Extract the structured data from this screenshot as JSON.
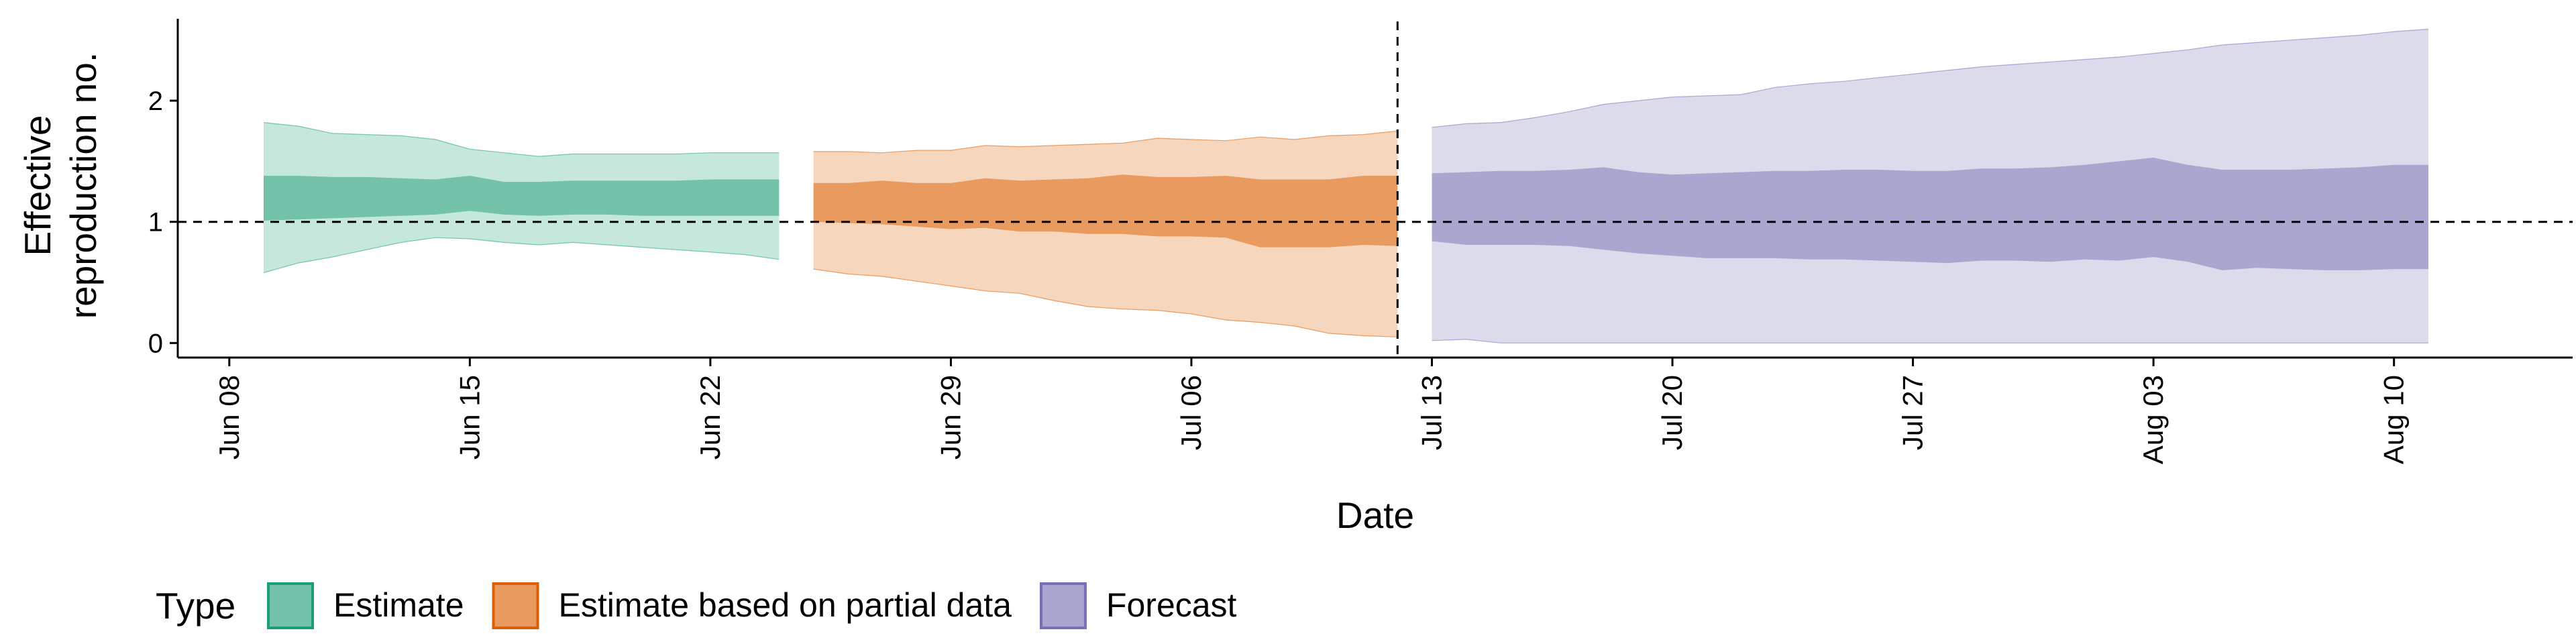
{
  "chart_data": {
    "type": "area",
    "title": "",
    "xlabel": "Date",
    "ylabel_lines": [
      "Effective",
      "reproduction no."
    ],
    "ylim": [
      -0.12,
      2.72
    ],
    "xlim": [
      -1.5,
      68.2
    ],
    "yticks": [
      0,
      1,
      2
    ],
    "xticks": [
      {
        "day": 0,
        "label": "Jun 08"
      },
      {
        "day": 7,
        "label": "Jun 15"
      },
      {
        "day": 14,
        "label": "Jun 22"
      },
      {
        "day": 21,
        "label": "Jun 29"
      },
      {
        "day": 28,
        "label": "Jul 06"
      },
      {
        "day": 35,
        "label": "Jul 13"
      },
      {
        "day": 42,
        "label": "Jul 20"
      },
      {
        "day": 49,
        "label": "Jul 27"
      },
      {
        "day": 56,
        "label": "Aug 03"
      },
      {
        "day": 63,
        "label": "Aug 10"
      }
    ],
    "x_axis_note": "x values are days since Jun 08",
    "reference_lines": {
      "hline_y": 1,
      "vline_day": 34.0
    },
    "legend": {
      "title": "Type",
      "position": "bottom",
      "entries": [
        "Estimate",
        "Estimate based on partial data",
        "Forecast"
      ]
    },
    "series": [
      {
        "name": "Estimate",
        "color_outer": "#c6e8dc",
        "color_inner": "#74c2a9",
        "stroke": "#1b9e77",
        "x": [
          1,
          2,
          3,
          4,
          5,
          6,
          7,
          8,
          9,
          10,
          11,
          12,
          13,
          14,
          15,
          16
        ],
        "lower90": [
          0.58,
          0.66,
          0.71,
          0.77,
          0.83,
          0.87,
          0.86,
          0.83,
          0.81,
          0.83,
          0.81,
          0.79,
          0.77,
          0.75,
          0.73,
          0.69
        ],
        "upper90": [
          1.82,
          1.79,
          1.73,
          1.72,
          1.71,
          1.68,
          1.6,
          1.57,
          1.54,
          1.56,
          1.56,
          1.56,
          1.56,
          1.57,
          1.57,
          1.57
        ],
        "lower50": [
          1.01,
          1.02,
          1.03,
          1.04,
          1.05,
          1.06,
          1.09,
          1.06,
          1.05,
          1.06,
          1.06,
          1.05,
          1.05,
          1.05,
          1.05,
          1.05
        ],
        "upper50": [
          1.38,
          1.38,
          1.37,
          1.37,
          1.36,
          1.35,
          1.38,
          1.33,
          1.33,
          1.34,
          1.34,
          1.34,
          1.34,
          1.35,
          1.35,
          1.35
        ]
      },
      {
        "name": "Estimate based on partial data",
        "color_outer": "#f6d6bc",
        "color_inner": "#e99a5e",
        "stroke": "#d95f02",
        "x": [
          17,
          18,
          19,
          20,
          21,
          22,
          23,
          24,
          25,
          26,
          27,
          28,
          29,
          30,
          31,
          32,
          33,
          34
        ],
        "lower90": [
          0.61,
          0.57,
          0.55,
          0.51,
          0.47,
          0.43,
          0.41,
          0.35,
          0.3,
          0.28,
          0.27,
          0.24,
          0.19,
          0.17,
          0.14,
          0.08,
          0.06,
          0.05
        ],
        "upper90": [
          1.58,
          1.58,
          1.57,
          1.59,
          1.59,
          1.63,
          1.62,
          1.63,
          1.64,
          1.65,
          1.69,
          1.68,
          1.67,
          1.7,
          1.68,
          1.71,
          1.72,
          1.75
        ],
        "lower50": [
          1.0,
          0.99,
          0.98,
          0.96,
          0.94,
          0.95,
          0.92,
          0.92,
          0.9,
          0.9,
          0.88,
          0.88,
          0.87,
          0.79,
          0.79,
          0.79,
          0.81,
          0.8
        ],
        "upper50": [
          1.32,
          1.32,
          1.34,
          1.32,
          1.32,
          1.36,
          1.34,
          1.35,
          1.36,
          1.39,
          1.37,
          1.37,
          1.38,
          1.35,
          1.35,
          1.35,
          1.38,
          1.38
        ]
      },
      {
        "name": "Forecast",
        "color_outer": "#dcdbeb",
        "color_inner": "#a9a6cf",
        "stroke": "#7570b3",
        "x": [
          35,
          36,
          37,
          38,
          39,
          40,
          41,
          42,
          43,
          44,
          45,
          46,
          47,
          48,
          49,
          50,
          51,
          52,
          53,
          54,
          55,
          56,
          57,
          58,
          59,
          60,
          61,
          62,
          63,
          64
        ],
        "lower90": [
          0.02,
          0.03,
          0.0,
          0.0,
          0.0,
          0.0,
          0.0,
          0.0,
          0.0,
          0.0,
          0.0,
          0.0,
          0.0,
          0.0,
          0.0,
          0.0,
          0.0,
          0.0,
          0.0,
          0.0,
          0.0,
          0.0,
          0.0,
          0.0,
          0.0,
          0.0,
          0.0,
          0.0,
          0.0,
          0.0
        ],
        "upper90": [
          1.78,
          1.81,
          1.82,
          1.86,
          1.91,
          1.97,
          2.0,
          2.03,
          2.04,
          2.05,
          2.11,
          2.14,
          2.16,
          2.19,
          2.22,
          2.25,
          2.28,
          2.3,
          2.32,
          2.34,
          2.36,
          2.39,
          2.42,
          2.46,
          2.48,
          2.5,
          2.52,
          2.54,
          2.57,
          2.59
        ],
        "lower50": [
          0.84,
          0.81,
          0.81,
          0.81,
          0.8,
          0.77,
          0.74,
          0.72,
          0.7,
          0.7,
          0.7,
          0.69,
          0.69,
          0.68,
          0.67,
          0.66,
          0.68,
          0.68,
          0.67,
          0.69,
          0.68,
          0.71,
          0.67,
          0.6,
          0.62,
          0.61,
          0.6,
          0.6,
          0.61,
          0.61
        ],
        "upper50": [
          1.4,
          1.41,
          1.42,
          1.42,
          1.43,
          1.45,
          1.41,
          1.39,
          1.4,
          1.41,
          1.42,
          1.42,
          1.43,
          1.43,
          1.42,
          1.42,
          1.44,
          1.44,
          1.45,
          1.47,
          1.5,
          1.53,
          1.47,
          1.43,
          1.43,
          1.43,
          1.44,
          1.45,
          1.47,
          1.47
        ]
      }
    ]
  }
}
